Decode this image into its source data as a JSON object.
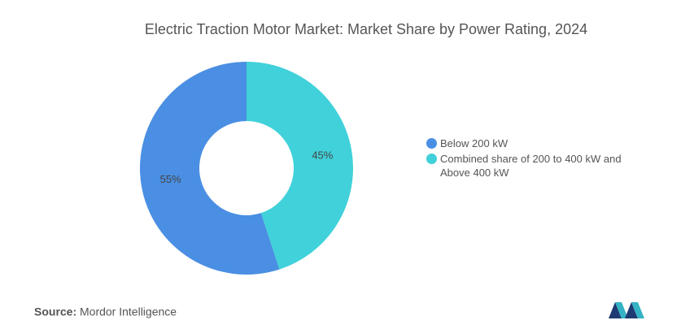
{
  "chart_data": {
    "type": "donut",
    "title": "Electric Traction Motor Market: Market Share by Power Rating, 2024",
    "categories": [
      "Below 200 kW",
      "Combined share of 200 to 400 kW and Above 400 kW"
    ],
    "values": [
      55,
      45
    ],
    "value_labels": [
      "55%",
      "45%"
    ],
    "colors": [
      "#4a8fe3",
      "#40d1da"
    ],
    "source_label": "Source:",
    "source": "Mordor Intelligence"
  }
}
